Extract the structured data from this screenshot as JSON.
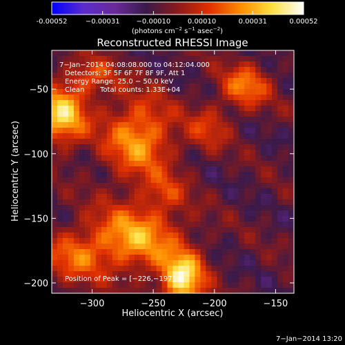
{
  "chart_data": {
    "type": "heatmap",
    "title": "Reconstructed RHESSI Image",
    "xlabel": "Heliocentric X (arcsec)",
    "ylabel": "Heliocentric Y (arcsec)",
    "xlim": [
      -333,
      -135
    ],
    "ylim": [
      -208,
      -20
    ],
    "x_ticks": [
      -300,
      -250,
      -200,
      -150
    ],
    "y_ticks": [
      -50,
      -100,
      -150,
      -200
    ],
    "colorscale": [
      "#0000ff",
      "#5a2ccc",
      "#6a2a9a",
      "#3a1a4a",
      "#8a1a1a",
      "#e03000",
      "#ff8a00",
      "#ffe040",
      "#ffffff"
    ],
    "colorbar": {
      "range": [
        -0.00052,
        0.00052
      ],
      "tick_values": [
        -0.00052,
        -0.00031,
        -0.0001,
        0.0001,
        0.00031,
        0.00052
      ],
      "tick_labels": [
        "-0.00052",
        "−0.00031",
        "−0.00010",
        "0.00010",
        "0.00031",
        "0.00052"
      ],
      "units_line1": "(photons cm",
      "units_sup1": "−2",
      "units_mid1": " s",
      "units_sup2": "−1",
      "units_mid2": " asec",
      "units_sup3": "−2",
      "units_end": ")"
    },
    "annotations": {
      "time_range": "7−Jan−2014 04:08:08.000 to 04:12:04.000",
      "detectors": "Detectors: 3F 5F 6F 7F 8F 9F, Att 1",
      "energy": "Energy Range: 25.0 − 50.0 keV",
      "clean": "Clean",
      "total_counts": "Total counts: 1.33E+04",
      "peak": "Position of Peak = [−226,−197]"
    },
    "footer_timestamp": "7−Jan−2014 13:20",
    "sources": [
      {
        "x": -325,
        "y": -70,
        "sx": 14,
        "sy": 16,
        "amp": 0.00046
      },
      {
        "x": -262,
        "y": -88,
        "sx": 20,
        "sy": 22,
        "amp": 0.00036
      },
      {
        "x": -265,
        "y": -165,
        "sx": 26,
        "sy": 18,
        "amp": 0.00038
      },
      {
        "x": -226,
        "y": -197,
        "sx": 12,
        "sy": 14,
        "amp": 0.00052
      },
      {
        "x": -175,
        "y": -48,
        "sx": 14,
        "sy": 12,
        "amp": 0.0003
      },
      {
        "x": -205,
        "y": -80,
        "sx": 12,
        "sy": 12,
        "amp": 0.00018
      },
      {
        "x": -315,
        "y": -180,
        "sx": 18,
        "sy": 14,
        "amp": 0.00024
      },
      {
        "x": -240,
        "y": -130,
        "sx": 12,
        "sy": 10,
        "amp": 0.00016
      },
      {
        "x": -300,
        "y": -40,
        "sx": 14,
        "sy": 10,
        "amp": 0.00022
      }
    ]
  }
}
